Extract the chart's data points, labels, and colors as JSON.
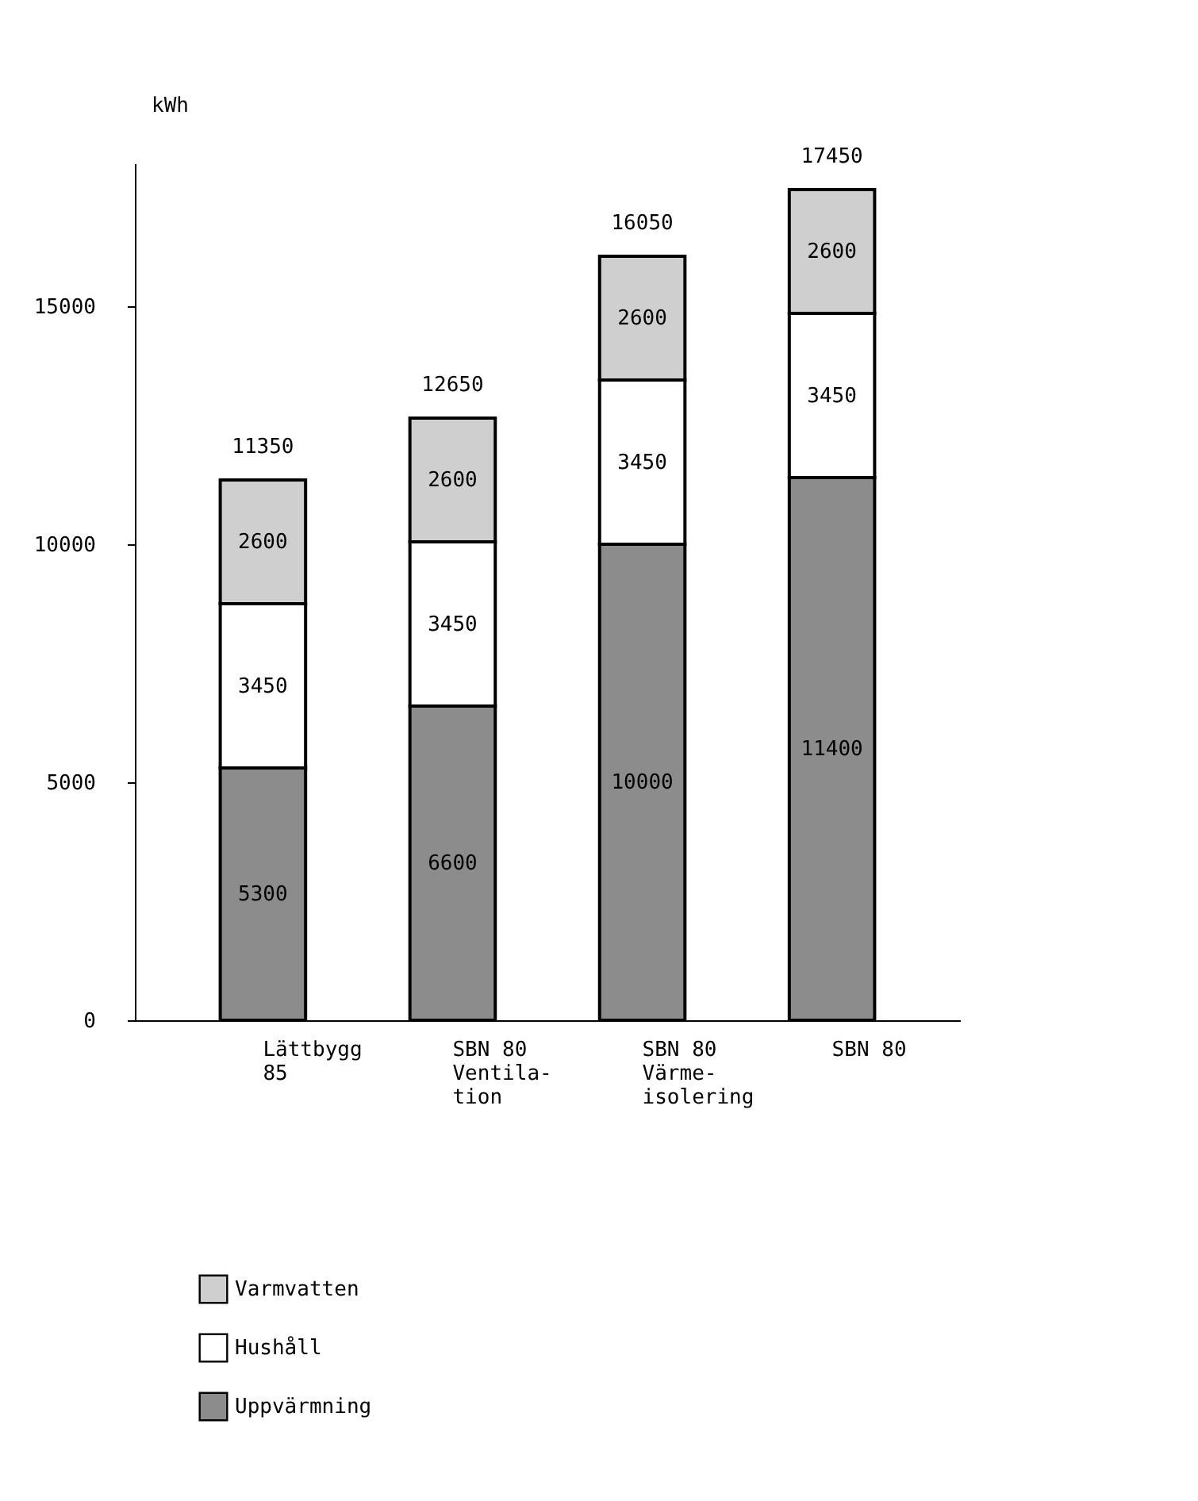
{
  "chart_data": {
    "type": "bar",
    "stacked": true,
    "ylabel": "kWh",
    "categories": [
      "Lättbygg\n85",
      "SBN 80\nVentila-\ntion",
      "SBN 80\nVärme-\nisolering",
      "SBN 80"
    ],
    "series": [
      {
        "name": "Uppvärmning",
        "color": "#8c8c8c",
        "values": [
          5300,
          6600,
          10000,
          11400
        ]
      },
      {
        "name": "Hushåll",
        "color": "#ffffff",
        "values": [
          3450,
          3450,
          3450,
          3450
        ]
      },
      {
        "name": "Varmvatten",
        "color": "#cfcfcf",
        "values": [
          2600,
          2600,
          2600,
          2600
        ]
      }
    ],
    "totals": [
      "11350",
      "12650",
      "16050",
      "17450"
    ],
    "data_labels": true,
    "ylim": [
      0,
      18000
    ],
    "yticks": [
      0,
      5000,
      10000,
      15000
    ],
    "grid": false,
    "legend": "bottom left"
  }
}
